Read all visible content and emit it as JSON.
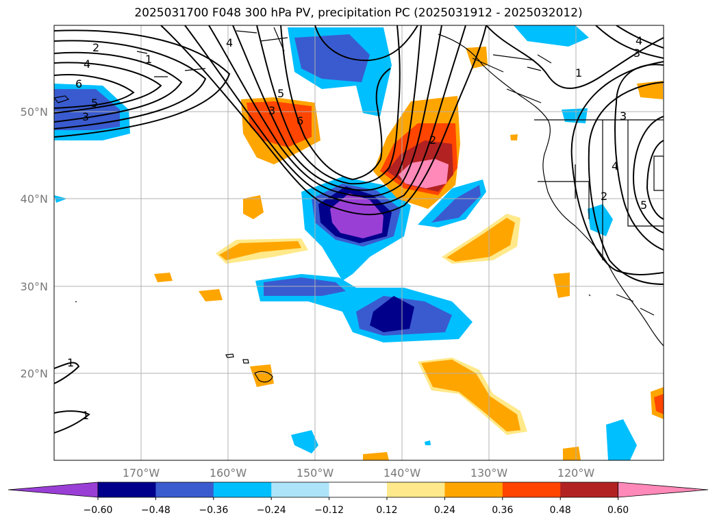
{
  "title": "2025031700 F048 300 hPa PV, precipitation PC (2025031912 - 2025032012)",
  "lat_labels": [
    "50°N",
    "40°N",
    "30°N",
    "20°N"
  ],
  "lon_labels": [
    "170°W",
    "160°W",
    "150°W",
    "140°W",
    "130°W",
    "120°W"
  ],
  "colorbar": {
    "ticks": [
      "−0.60",
      "−0.48",
      "−0.36",
      "−0.24",
      "−0.12",
      "0.12",
      "0.24",
      "0.36",
      "0.48",
      "0.60"
    ],
    "colors": [
      "#9a3fd6",
      "#00008b",
      "#3a5bcf",
      "#00bfff",
      "#aee4fa",
      "#ffffff",
      "#ffe98a",
      "#ffa500",
      "#ff4500",
      "#b22222",
      "#ff89b8"
    ]
  },
  "contour_labels": [
    "2",
    "4",
    "6",
    "5",
    "3",
    "1",
    "4",
    "5",
    "3",
    "6",
    "2",
    "3",
    "4",
    "2",
    "5",
    "3",
    "1",
    "1",
    "1",
    "4"
  ]
}
